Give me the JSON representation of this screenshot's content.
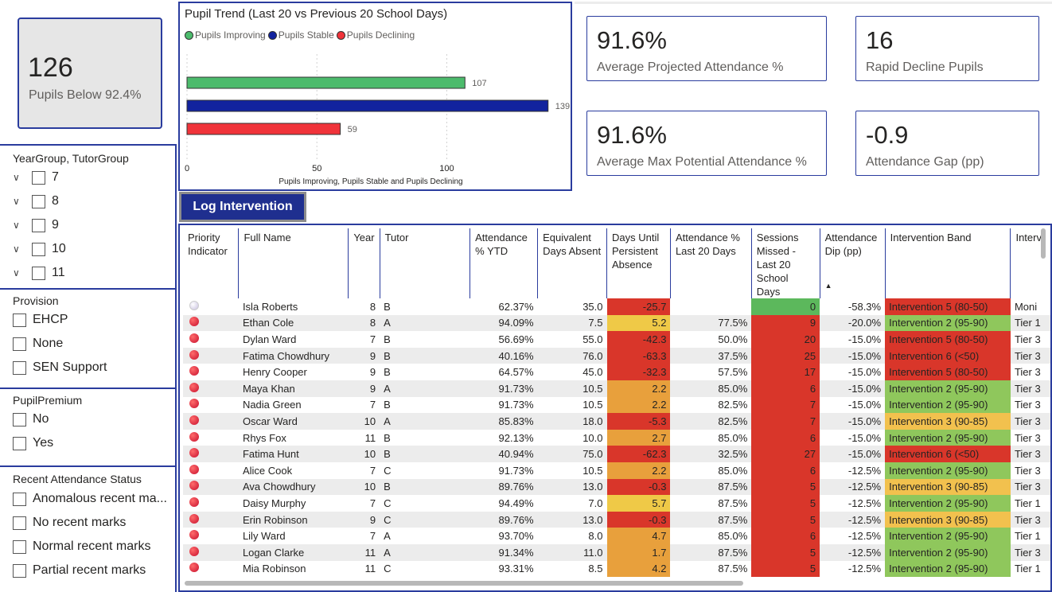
{
  "kpi_main": {
    "value": "126",
    "label": "Pupils Below 92.4%"
  },
  "slicers": {
    "year": {
      "title": "YearGroup, TutorGroup",
      "items": [
        "7",
        "8",
        "9",
        "10",
        "11"
      ]
    },
    "provision": {
      "title": "Provision",
      "items": [
        "EHCP",
        "None",
        "SEN Support"
      ]
    },
    "premium": {
      "title": "PupilPremium",
      "items": [
        "No",
        "Yes"
      ]
    },
    "recent": {
      "title": "Recent Attendance Status",
      "items": [
        "Anomalous recent ma...",
        "No recent marks",
        "Normal recent marks",
        "Partial recent marks"
      ]
    }
  },
  "chart_data": {
    "type": "bar",
    "title": "Pupil Trend (Last 20 vs Previous 20 School Days)",
    "series": [
      {
        "name": "Pupils Improving",
        "values": [
          107
        ],
        "color": "#4cbb6c"
      },
      {
        "name": "Pupils Stable",
        "values": [
          139
        ],
        "color": "#12239e"
      },
      {
        "name": "Pupils Declining",
        "values": [
          59
        ],
        "color": "#f0333a"
      }
    ],
    "xlabel": "Pupils Improving, Pupils Stable and Pupils Declining",
    "xticks": [
      "0",
      "50",
      "100"
    ],
    "xlim": [
      0,
      140
    ],
    "orientation": "horizontal"
  },
  "kpis": [
    {
      "value": "91.6%",
      "label": "Average Projected Attendance %"
    },
    {
      "value": "16",
      "label": "Rapid Decline Pupils"
    },
    {
      "value": "91.6%",
      "label": "Average Max Potential Attendance %"
    },
    {
      "value": "-0.9",
      "label": "Attendance Gap (pp)"
    }
  ],
  "log_button": "Log Intervention",
  "table": {
    "headers": [
      "Priority Indicator",
      "Full Name",
      "Year",
      "Tutor",
      "Attendance % YTD",
      "Equivalent Days Absent",
      "Days Until Persistent Absence",
      "Attendance % Last 20 Days",
      "Sessions Missed - Last 20 School Days",
      "Attendance Dip (pp)",
      "Intervention Band",
      "Interv"
    ],
    "rows": [
      {
        "pale": true,
        "name": "Isla Roberts",
        "year": "8",
        "tutor": "B",
        "ytd": "62.37%",
        "days": "35.0",
        "until": "-25.7",
        "uc": "red",
        "l20": "",
        "sess": "0",
        "sc": "green",
        "dip": "-58.3%",
        "band": "Intervention 5 (80-50)",
        "bc": "bred",
        "tier": "Moni"
      },
      {
        "name": "Ethan Cole",
        "year": "8",
        "tutor": "A",
        "ytd": "94.09%",
        "days": "7.5",
        "until": "5.2",
        "uc": "yellow",
        "l20": "77.5%",
        "sess": "9",
        "sc": "red",
        "dip": "-20.0%",
        "band": "Intervention 2 (95-90)",
        "bc": "lgreen",
        "tier": "Tier 1"
      },
      {
        "name": "Dylan Ward",
        "year": "7",
        "tutor": "B",
        "ytd": "56.69%",
        "days": "55.0",
        "until": "-42.3",
        "uc": "red",
        "l20": "50.0%",
        "sess": "20",
        "sc": "red",
        "dip": "-15.0%",
        "band": "Intervention 5 (80-50)",
        "bc": "bred",
        "tier": "Tier 3"
      },
      {
        "name": "Fatima Chowdhury",
        "year": "9",
        "tutor": "B",
        "ytd": "40.16%",
        "days": "76.0",
        "until": "-63.3",
        "uc": "red",
        "l20": "37.5%",
        "sess": "25",
        "sc": "red",
        "dip": "-15.0%",
        "band": "Intervention 6 (<50)",
        "bc": "bred",
        "tier": "Tier 3"
      },
      {
        "name": "Henry Cooper",
        "year": "9",
        "tutor": "B",
        "ytd": "64.57%",
        "days": "45.0",
        "until": "-32.3",
        "uc": "red",
        "l20": "57.5%",
        "sess": "17",
        "sc": "red",
        "dip": "-15.0%",
        "band": "Intervention 5 (80-50)",
        "bc": "bred",
        "tier": "Tier 3"
      },
      {
        "name": "Maya Khan",
        "year": "9",
        "tutor": "A",
        "ytd": "91.73%",
        "days": "10.5",
        "until": "2.2",
        "uc": "orange",
        "l20": "85.0%",
        "sess": "6",
        "sc": "red",
        "dip": "-15.0%",
        "band": "Intervention 2 (95-90)",
        "bc": "lgreen",
        "tier": "Tier 3"
      },
      {
        "name": "Nadia Green",
        "year": "7",
        "tutor": "B",
        "ytd": "91.73%",
        "days": "10.5",
        "until": "2.2",
        "uc": "orange",
        "l20": "82.5%",
        "sess": "7",
        "sc": "red",
        "dip": "-15.0%",
        "band": "Intervention 2 (95-90)",
        "bc": "lgreen",
        "tier": "Tier 3"
      },
      {
        "name": "Oscar Ward",
        "year": "10",
        "tutor": "A",
        "ytd": "85.83%",
        "days": "18.0",
        "until": "-5.3",
        "uc": "red",
        "l20": "82.5%",
        "sess": "7",
        "sc": "red",
        "dip": "-15.0%",
        "band": "Intervention 3 (90-85)",
        "bc": "byellow",
        "tier": "Tier 3"
      },
      {
        "name": "Rhys Fox",
        "year": "11",
        "tutor": "B",
        "ytd": "92.13%",
        "days": "10.0",
        "until": "2.7",
        "uc": "orange",
        "l20": "85.0%",
        "sess": "6",
        "sc": "red",
        "dip": "-15.0%",
        "band": "Intervention 2 (95-90)",
        "bc": "lgreen",
        "tier": "Tier 3"
      },
      {
        "name": "Fatima Hunt",
        "year": "10",
        "tutor": "B",
        "ytd": "40.94%",
        "days": "75.0",
        "until": "-62.3",
        "uc": "red",
        "l20": "32.5%",
        "sess": "27",
        "sc": "red",
        "dip": "-15.0%",
        "band": "Intervention 6 (<50)",
        "bc": "bred",
        "tier": "Tier 3"
      },
      {
        "name": "Alice Cook",
        "year": "7",
        "tutor": "C",
        "ytd": "91.73%",
        "days": "10.5",
        "until": "2.2",
        "uc": "orange",
        "l20": "85.0%",
        "sess": "6",
        "sc": "red",
        "dip": "-12.5%",
        "band": "Intervention 2 (95-90)",
        "bc": "lgreen",
        "tier": "Tier 3"
      },
      {
        "name": "Ava Chowdhury",
        "year": "10",
        "tutor": "B",
        "ytd": "89.76%",
        "days": "13.0",
        "until": "-0.3",
        "uc": "red",
        "l20": "87.5%",
        "sess": "5",
        "sc": "red",
        "dip": "-12.5%",
        "band": "Intervention 3 (90-85)",
        "bc": "byellow",
        "tier": "Tier 3"
      },
      {
        "name": "Daisy Murphy",
        "year": "7",
        "tutor": "C",
        "ytd": "94.49%",
        "days": "7.0",
        "until": "5.7",
        "uc": "yellow",
        "l20": "87.5%",
        "sess": "5",
        "sc": "red",
        "dip": "-12.5%",
        "band": "Intervention 2 (95-90)",
        "bc": "lgreen",
        "tier": "Tier 1"
      },
      {
        "name": "Erin Robinson",
        "year": "9",
        "tutor": "C",
        "ytd": "89.76%",
        "days": "13.0",
        "until": "-0.3",
        "uc": "red",
        "l20": "87.5%",
        "sess": "5",
        "sc": "red",
        "dip": "-12.5%",
        "band": "Intervention 3 (90-85)",
        "bc": "byellow",
        "tier": "Tier 3"
      },
      {
        "name": "Lily Ward",
        "year": "7",
        "tutor": "A",
        "ytd": "93.70%",
        "days": "8.0",
        "until": "4.7",
        "uc": "orange",
        "l20": "85.0%",
        "sess": "6",
        "sc": "red",
        "dip": "-12.5%",
        "band": "Intervention 2 (95-90)",
        "bc": "lgreen",
        "tier": "Tier 1"
      },
      {
        "name": "Logan Clarke",
        "year": "11",
        "tutor": "A",
        "ytd": "91.34%",
        "days": "11.0",
        "until": "1.7",
        "uc": "orange",
        "l20": "87.5%",
        "sess": "5",
        "sc": "red",
        "dip": "-12.5%",
        "band": "Intervention 2 (95-90)",
        "bc": "lgreen",
        "tier": "Tier 3"
      },
      {
        "name": "Mia Robinson",
        "year": "11",
        "tutor": "C",
        "ytd": "93.31%",
        "days": "8.5",
        "until": "4.2",
        "uc": "orange",
        "l20": "87.5%",
        "sess": "5",
        "sc": "red",
        "dip": "-12.5%",
        "band": "Intervention 2 (95-90)",
        "bc": "lgreen",
        "tier": "Tier 1"
      }
    ]
  }
}
